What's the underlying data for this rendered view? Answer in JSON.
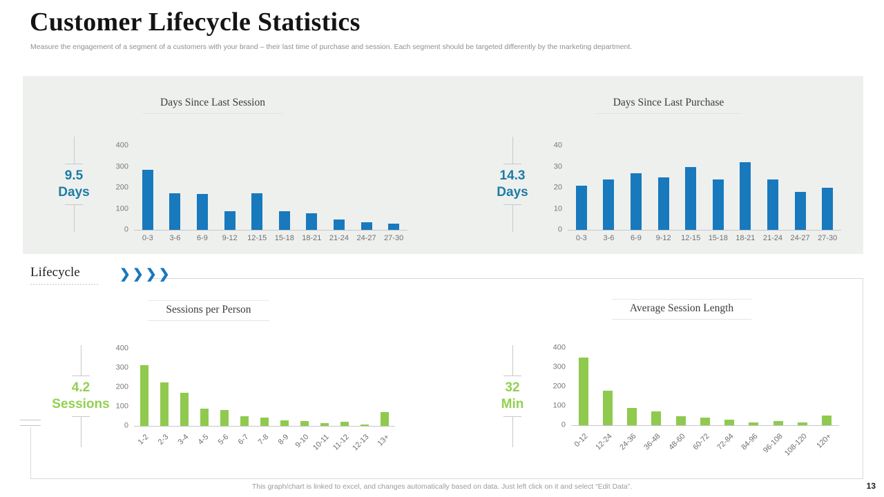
{
  "page": {
    "title": "Customer Lifecycle Statistics",
    "subtitle": "Measure the engagement of a segment of a customers with your brand – their last time of purchase and session. Each segment should be targeted differently by the marketing department.",
    "section_label": "Lifecycle",
    "chevrons": "❯❯❯❯",
    "footer_note": "This graph/chart is linked to excel, and changes automatically based on data. Just left click on it and select “Edit Data”.",
    "page_number": "13"
  },
  "colors": {
    "accent_blue_bar": "#1879bd",
    "accent_blue_stat": "#1d7ca6",
    "accent_green_bar": "#8fca4e",
    "accent_green_stat": "#92d050",
    "panel_gray": "#eef0ee",
    "axis_text": "#6f6f6f",
    "border_gray": "#d9d9d9"
  },
  "chart_data": [
    {
      "type": "bar",
      "title": "Days Since Last Session",
      "stat": {
        "value": "9.5",
        "unit": "Days",
        "color": "#1d7ca6"
      },
      "bar_color": "#1879bd",
      "categories": [
        "0-3",
        "3-6",
        "6-9",
        "9-12",
        "12-15",
        "15-18",
        "18-21",
        "21-24",
        "24-27",
        "27-30"
      ],
      "values": [
        285,
        175,
        170,
        90,
        175,
        90,
        80,
        50,
        35,
        30
      ],
      "xlabel": "",
      "ylabel": "",
      "ylim": [
        0,
        400
      ],
      "yticks": [
        0,
        100,
        200,
        300,
        400
      ],
      "grid": false,
      "legend": false,
      "rotated_labels": false
    },
    {
      "type": "bar",
      "title": "Days Since Last Purchase",
      "stat": {
        "value": "14.3",
        "unit": "Days",
        "color": "#1d7ca6"
      },
      "bar_color": "#1879bd",
      "categories": [
        "0-3",
        "3-6",
        "6-9",
        "9-12",
        "12-15",
        "15-18",
        "18-21",
        "21-24",
        "24-27",
        "27-30"
      ],
      "values": [
        21,
        24,
        27,
        25,
        30,
        24,
        32,
        24,
        18,
        20
      ],
      "xlabel": "",
      "ylabel": "",
      "ylim": [
        0,
        40
      ],
      "yticks": [
        0,
        10,
        20,
        30,
        40
      ],
      "grid": false,
      "legend": false,
      "rotated_labels": false
    },
    {
      "type": "bar",
      "title": "Sessions per Person",
      "stat": {
        "value": "4.2",
        "unit": "Sessions",
        "color": "#92d050"
      },
      "bar_color": "#8fca4e",
      "categories": [
        "1-2",
        "2-3",
        "3-4",
        "4-5",
        "5-6",
        "6-7",
        "7-8",
        "8-9",
        "9-10",
        "10-11",
        "11-12",
        "12-13",
        "13+"
      ],
      "values": [
        315,
        225,
        170,
        90,
        82,
        50,
        42,
        30,
        25,
        15,
        22,
        8,
        70
      ],
      "xlabel": "",
      "ylabel": "",
      "ylim": [
        0,
        400
      ],
      "yticks": [
        0,
        100,
        200,
        300,
        400
      ],
      "grid": false,
      "legend": false,
      "rotated_labels": true
    },
    {
      "type": "bar",
      "title": "Average Session Length",
      "stat": {
        "value": "32",
        "unit": "Min",
        "color": "#92d050"
      },
      "bar_color": "#8fca4e",
      "categories": [
        "0-12",
        "12-24",
        "24-36",
        "36-48",
        "48-60",
        "60-72",
        "72-84",
        "84-96",
        "96-108",
        "108-120",
        "120+"
      ],
      "values": [
        350,
        180,
        90,
        70,
        45,
        40,
        30,
        15,
        20,
        15,
        50
      ],
      "xlabel": "",
      "ylabel": "",
      "ylim": [
        0,
        400
      ],
      "yticks": [
        0,
        100,
        200,
        300,
        400
      ],
      "grid": false,
      "legend": false,
      "rotated_labels": true
    }
  ]
}
